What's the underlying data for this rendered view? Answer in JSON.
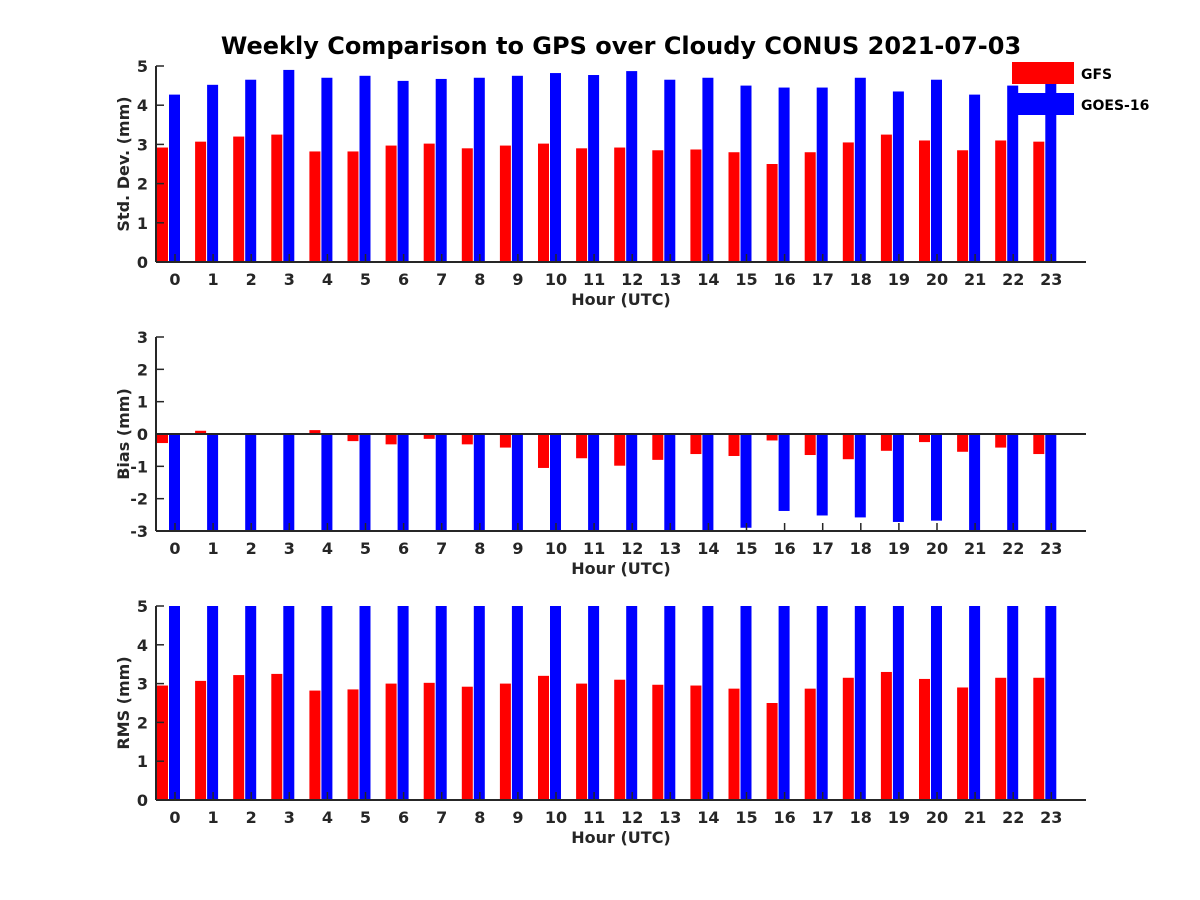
{
  "figure": {
    "title": "Weekly Comparison to GPS over Cloudy CONUS 2021-07-03"
  },
  "legend": {
    "placement": "top-right",
    "items": [
      {
        "label": "GFS",
        "color": "#ff0000"
      },
      {
        "label": "GOES-16",
        "color": "#0000ff"
      }
    ]
  },
  "chart_data": [
    {
      "type": "bar",
      "xlabel": "Hour (UTC)",
      "ylabel": "Std. Dev. (mm)",
      "ylim": [
        0,
        5
      ],
      "yticks": [
        0,
        1,
        2,
        3,
        4,
        5
      ],
      "categories": [
        "0",
        "1",
        "2",
        "3",
        "4",
        "5",
        "6",
        "7",
        "8",
        "9",
        "10",
        "11",
        "12",
        "13",
        "14",
        "15",
        "16",
        "17",
        "18",
        "19",
        "20",
        "21",
        "22",
        "23"
      ],
      "series": [
        {
          "name": "GFS",
          "color": "#ff0000",
          "values": [
            2.92,
            3.07,
            3.2,
            3.25,
            2.82,
            2.82,
            2.97,
            3.02,
            2.9,
            2.97,
            3.02,
            2.9,
            2.92,
            2.85,
            2.87,
            2.8,
            2.5,
            2.8,
            3.05,
            3.25,
            3.1,
            2.85,
            3.1,
            3.07
          ]
        },
        {
          "name": "GOES-16",
          "color": "#0000ff",
          "values": [
            4.27,
            4.52,
            4.65,
            4.9,
            4.7,
            4.75,
            4.62,
            4.67,
            4.7,
            4.75,
            4.82,
            4.77,
            4.87,
            4.65,
            4.7,
            4.5,
            4.45,
            4.45,
            4.7,
            4.35,
            4.65,
            4.27,
            4.5,
            4.65
          ]
        }
      ]
    },
    {
      "type": "bar",
      "xlabel": "Hour (UTC)",
      "ylabel": "Bias (mm)",
      "ylim": [
        -3,
        3
      ],
      "yticks": [
        -3,
        -2,
        -1,
        0,
        1,
        2,
        3
      ],
      "categories": [
        "0",
        "1",
        "2",
        "3",
        "4",
        "5",
        "6",
        "7",
        "8",
        "9",
        "10",
        "11",
        "12",
        "13",
        "14",
        "15",
        "16",
        "17",
        "18",
        "19",
        "20",
        "21",
        "22",
        "23"
      ],
      "series": [
        {
          "name": "GFS",
          "color": "#ff0000",
          "values": [
            -0.28,
            0.1,
            0.03,
            0.0,
            0.12,
            -0.22,
            -0.32,
            -0.15,
            -0.32,
            -0.42,
            -1.05,
            -0.75,
            -0.98,
            -0.8,
            -0.62,
            -0.68,
            -0.2,
            -0.65,
            -0.78,
            -0.52,
            -0.25,
            -0.55,
            -0.42,
            -0.62
          ]
        },
        {
          "name": "GOES-16",
          "color": "#0000ff",
          "values": [
            -3.0,
            -3.0,
            -3.0,
            -3.0,
            -3.0,
            -3.0,
            -3.0,
            -3.0,
            -3.0,
            -3.0,
            -3.0,
            -3.0,
            -3.0,
            -3.0,
            -3.0,
            -2.9,
            -2.38,
            -2.52,
            -2.58,
            -2.72,
            -2.68,
            -3.0,
            -3.0,
            -3.0
          ]
        }
      ]
    },
    {
      "type": "bar",
      "xlabel": "Hour (UTC)",
      "ylabel": "RMS (mm)",
      "ylim": [
        0,
        5
      ],
      "yticks": [
        0,
        1,
        2,
        3,
        4,
        5
      ],
      "categories": [
        "0",
        "1",
        "2",
        "3",
        "4",
        "5",
        "6",
        "7",
        "8",
        "9",
        "10",
        "11",
        "12",
        "13",
        "14",
        "15",
        "16",
        "17",
        "18",
        "19",
        "20",
        "21",
        "22",
        "23"
      ],
      "series": [
        {
          "name": "GFS",
          "color": "#ff0000",
          "values": [
            2.95,
            3.07,
            3.22,
            3.25,
            2.82,
            2.85,
            3.0,
            3.02,
            2.92,
            3.0,
            3.2,
            3.0,
            3.1,
            2.97,
            2.95,
            2.87,
            2.5,
            2.87,
            3.15,
            3.3,
            3.12,
            2.9,
            3.15,
            3.15
          ]
        },
        {
          "name": "GOES-16",
          "color": "#0000ff",
          "values": [
            5.0,
            5.0,
            5.0,
            5.0,
            5.0,
            5.0,
            5.0,
            5.0,
            5.0,
            5.0,
            5.0,
            5.0,
            5.0,
            5.0,
            5.0,
            5.0,
            5.0,
            5.0,
            5.0,
            5.0,
            5.0,
            5.0,
            5.0,
            5.0
          ]
        }
      ]
    }
  ]
}
